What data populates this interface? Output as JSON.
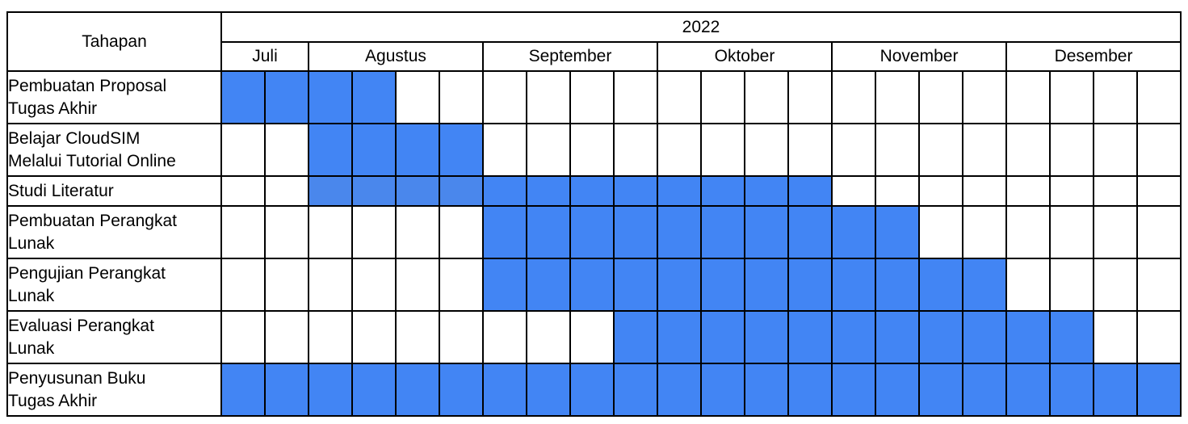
{
  "header": {
    "stage_label": "Tahapan",
    "year": "2022",
    "months": [
      {
        "label": "Juli",
        "weeks": 2
      },
      {
        "label": "Agustus",
        "weeks": 4
      },
      {
        "label": "September",
        "weeks": 4
      },
      {
        "label": "Oktober",
        "weeks": 4
      },
      {
        "label": "November",
        "weeks": 4
      },
      {
        "label": "Desember",
        "weeks": 4
      }
    ]
  },
  "colors": {
    "filled": "#4285f4",
    "filled_alt": "#4a87ec",
    "empty": "#ffffff",
    "border": "#000000"
  },
  "tasks": [
    {
      "name": "Pembuatan Proposal Tugas Akhir",
      "lines": [
        "Pembuatan Proposal",
        "Tugas Akhir"
      ],
      "start": 0,
      "end": 3
    },
    {
      "name": "Belajar CloudSIM Melalui Tutorial Online",
      "lines": [
        "Belajar CloudSIM",
        "Melalui Tutorial Online"
      ],
      "start": 2,
      "end": 5
    },
    {
      "name": "Studi Literatur",
      "lines": [
        "Studi Literatur"
      ],
      "start": 2,
      "end": 13,
      "alt_range": [
        2,
        5
      ]
    },
    {
      "name": "Pembuatan Perangkat Lunak",
      "lines": [
        "Pembuatan Perangkat",
        "Lunak"
      ],
      "start": 6,
      "end": 15
    },
    {
      "name": "Pengujian Perangkat Lunak",
      "lines": [
        "Pengujian Perangkat",
        "Lunak"
      ],
      "start": 6,
      "end": 17
    },
    {
      "name": "Evaluasi Perangkat Lunak",
      "lines": [
        "Evaluasi Perangkat",
        "Lunak"
      ],
      "start": 9,
      "end": 19
    },
    {
      "name": "Penyusunan Buku Tugas Akhir",
      "lines": [
        "Penyusunan Buku",
        "Tugas Akhir"
      ],
      "start": 0,
      "end": 21
    }
  ]
}
